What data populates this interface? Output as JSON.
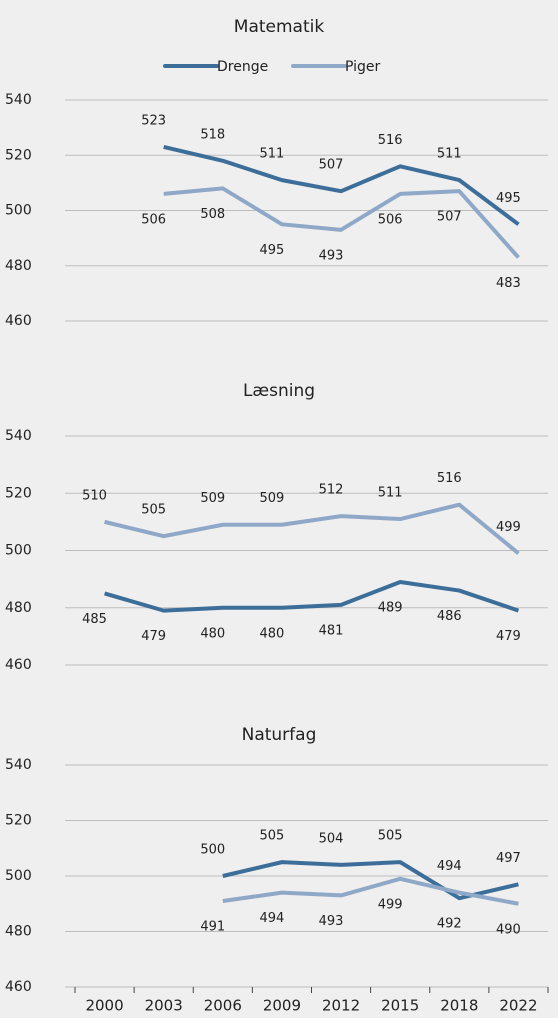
{
  "chart_data": [
    {
      "type": "line",
      "title": "Matematik",
      "series": [
        {
          "name": "Drenge",
          "color": "#3d6e9a",
          "values": [
            null,
            523,
            518,
            511,
            507,
            516,
            511,
            495
          ]
        },
        {
          "name": "Piger",
          "color": "#8fa8c8",
          "values": [
            null,
            506,
            508,
            495,
            493,
            506,
            507,
            483
          ]
        }
      ],
      "ylim": [
        460,
        540
      ],
      "yticks": [
        460,
        480,
        500,
        520,
        540
      ],
      "grid": true,
      "legend": "top"
    },
    {
      "type": "line",
      "title": "Læsning",
      "series": [
        {
          "color": "#3d6e9a",
          "values": [
            485,
            479,
            480,
            480,
            481,
            489,
            486,
            479
          ]
        },
        {
          "color": "#8fa8c8",
          "values": [
            510,
            505,
            509,
            509,
            512,
            511,
            516,
            499
          ]
        }
      ],
      "ylim": [
        460,
        540
      ],
      "yticks": [
        460,
        480,
        500,
        520,
        540
      ],
      "grid": true
    },
    {
      "type": "line",
      "title": "Naturfag",
      "categories": [
        "2000",
        "2003",
        "2006",
        "2009",
        "2012",
        "2015",
        "2018",
        "2022"
      ],
      "series": [
        {
          "color": "#3d6e9a",
          "values": [
            null,
            null,
            500,
            505,
            504,
            505,
            492,
            497
          ]
        },
        {
          "color": "#8fa8c8",
          "values": [
            null,
            null,
            491,
            494,
            493,
            499,
            494,
            490
          ]
        }
      ],
      "ylim": [
        460,
        540
      ],
      "yticks": [
        460,
        480,
        500,
        520,
        540
      ],
      "grid": true
    }
  ]
}
